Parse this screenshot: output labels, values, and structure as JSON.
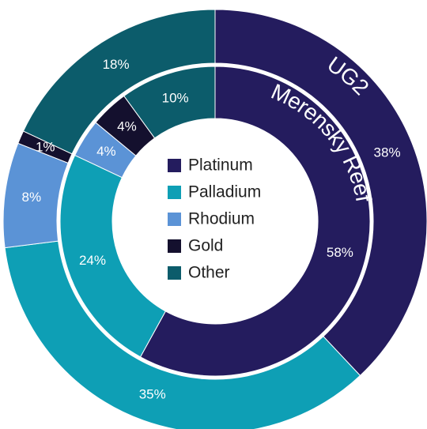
{
  "chart_data": {
    "type": "donut",
    "categories": [
      "Platinum",
      "Palladium",
      "Rhodium",
      "Gold",
      "Other"
    ],
    "colors": [
      "#241c5e",
      "#0e9fb5",
      "#5b93d6",
      "#14102e",
      "#0c5c6b"
    ],
    "series": [
      {
        "name": "UG2",
        "values": [
          38,
          35,
          8,
          1,
          18
        ],
        "value_labels": [
          "38%",
          "35%",
          "8%",
          "1%",
          "18%"
        ]
      },
      {
        "name": "Merensky Reef",
        "values": [
          58,
          24,
          4,
          4,
          10
        ],
        "value_labels": [
          "58%",
          "24%",
          "4%",
          "4%",
          "10%"
        ]
      }
    ]
  }
}
